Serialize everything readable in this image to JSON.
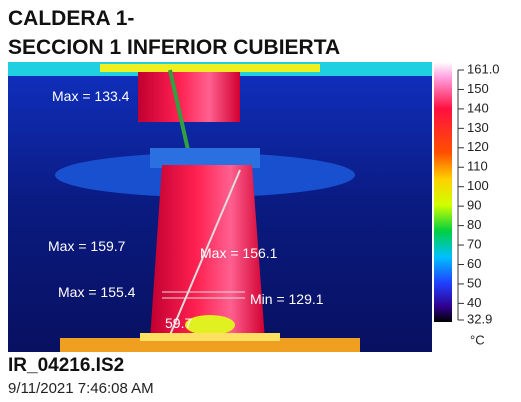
{
  "header": {
    "title_lines": [
      "CALDERA 1-",
      "SECCION 1 INFERIOR CUBIERTA"
    ]
  },
  "image": {
    "annotations": [
      "Max = 133.4",
      "Max = 159.7",
      "Max = 156.1",
      "Max = 155.4",
      "Min = 129.1",
      "59.7"
    ]
  },
  "colorbar": {
    "ticks": [
      "161.0",
      "150",
      "140",
      "130",
      "120",
      "110",
      "100",
      "90",
      "80",
      "70",
      "60",
      "50",
      "40",
      "32.9"
    ],
    "unit": "°C"
  },
  "footer": {
    "filename": "IR_04216.IS2",
    "datetime": "9/11/2021 7:46:08 AM"
  }
}
